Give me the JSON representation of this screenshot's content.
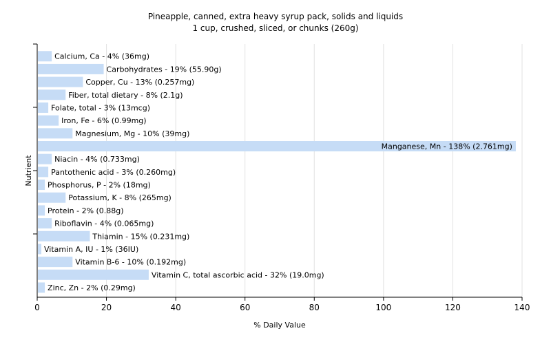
{
  "chart_data": {
    "type": "bar",
    "orientation": "horizontal",
    "title": "Pineapple, canned, extra heavy syrup pack, solids and liquids",
    "subtitle": "1 cup, crushed, sliced, or chunks (260g)",
    "xlabel": "% Daily Value",
    "ylabel": "Nutrient",
    "xlim": [
      0,
      140
    ],
    "xticks": [
      0,
      20,
      40,
      60,
      80,
      100,
      120,
      140
    ],
    "grid": true,
    "bar_color": "#c6dcf6",
    "categories": [
      "Calcium, Ca",
      "Carbohydrates",
      "Copper, Cu",
      "Fiber, total dietary",
      "Folate, total",
      "Iron, Fe",
      "Magnesium, Mg",
      "Manganese, Mn",
      "Niacin",
      "Pantothenic acid",
      "Phosphorus, P",
      "Potassium, K",
      "Protein",
      "Riboflavin",
      "Thiamin",
      "Vitamin A, IU",
      "Vitamin B-6",
      "Vitamin C, total ascorbic acid",
      "Zinc, Zn"
    ],
    "values": [
      4,
      19,
      13,
      8,
      3,
      6,
      10,
      138,
      4,
      3,
      2,
      8,
      2,
      4,
      15,
      1,
      10,
      32,
      2
    ],
    "labels": [
      "Calcium, Ca - 4% (36mg)",
      "Carbohydrates - 19% (55.90g)",
      "Copper, Cu - 13% (0.257mg)",
      "Fiber, total dietary - 8% (2.1g)",
      "Folate, total - 3% (13mcg)",
      "Iron, Fe - 6% (0.99mg)",
      "Magnesium, Mg - 10% (39mg)",
      "Manganese, Mn - 138% (2.761mg)",
      "Niacin - 4% (0.733mg)",
      "Pantothenic acid - 3% (0.260mg)",
      "Phosphorus, P - 2% (18mg)",
      "Potassium, K - 8% (265mg)",
      "Protein - 2% (0.88g)",
      "Riboflavin - 4% (0.065mg)",
      "Thiamin - 15% (0.231mg)",
      "Vitamin A, IU - 1% (36IU)",
      "Vitamin B-6 - 10% (0.192mg)",
      "Vitamin C, total ascorbic acid - 32% (19.0mg)",
      "Zinc, Zn - 2% (0.29mg)"
    ]
  }
}
